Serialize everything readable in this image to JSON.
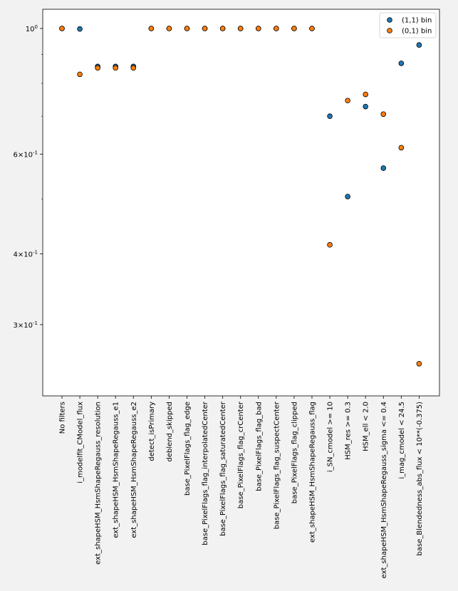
{
  "chart_data": {
    "type": "scatter",
    "title": "",
    "xlabel": "",
    "ylabel": "",
    "yscale": "log",
    "ylim": [
      0.245,
      1.065
    ],
    "grid": false,
    "legend_position": "top-right",
    "categories": [
      "No filters",
      "i_modelfit_CModel_flux",
      "ext_shapeHSM_HsmShapeRegauss_resolution",
      "ext_shapeHSM_HsmShapeRegauss_e1",
      "ext_shapeHSM_HsmShapeRegauss_e2",
      "detect_isPrimary",
      "deblend_skipped",
      "base_PixelFlags_flag_edge",
      "base_PixelFlags_flag_interpolatedCenter",
      "base_PixelFlags_flag_saturatedCenter",
      "base_PixelFlags_flag_crCenter",
      "base_PixelFlags_flag_bad",
      "base_PixelFlags_flag_suspectCenter",
      "base_PixelFlags_flag_clipped",
      "ext_shapeHSM_HsmShapeRegauss_flag",
      "i_SN_cmodel >= 10",
      "HSM_res >= 0.3",
      "HSM_ell < 2.0",
      "ext_shapeHSM_HsmShapeRegauss_sigma <= 0.4",
      "i_mag_cmodel < 24.5",
      "base_Blendedness_abs_flux < 10**(-0.375)"
    ],
    "y_ticks": [
      {
        "value": 1.0,
        "label": "10^0"
      },
      {
        "value": 0.6,
        "label": "6×10^-1"
      },
      {
        "value": 0.4,
        "label": "4×10^-1"
      },
      {
        "value": 0.3,
        "label": "3×10^-1"
      }
    ],
    "series": [
      {
        "name": "(1,1) bin",
        "color": "#1f77b4",
        "values": [
          1.0,
          0.998,
          0.857,
          0.857,
          0.857,
          1.0,
          1.0,
          1.0,
          1.0,
          1.0,
          1.0,
          1.0,
          1.0,
          1.0,
          1.0,
          0.7,
          0.505,
          0.728,
          0.567,
          0.868,
          0.935
        ]
      },
      {
        "name": "(0,1) bin",
        "color": "#ff7f0e",
        "values": [
          1.0,
          0.83,
          0.852,
          0.852,
          0.852,
          1.0,
          1.0,
          1.0,
          1.0,
          1.0,
          1.0,
          1.0,
          1.0,
          1.0,
          1.0,
          0.415,
          0.746,
          0.765,
          0.706,
          0.616,
          0.256
        ]
      }
    ]
  }
}
